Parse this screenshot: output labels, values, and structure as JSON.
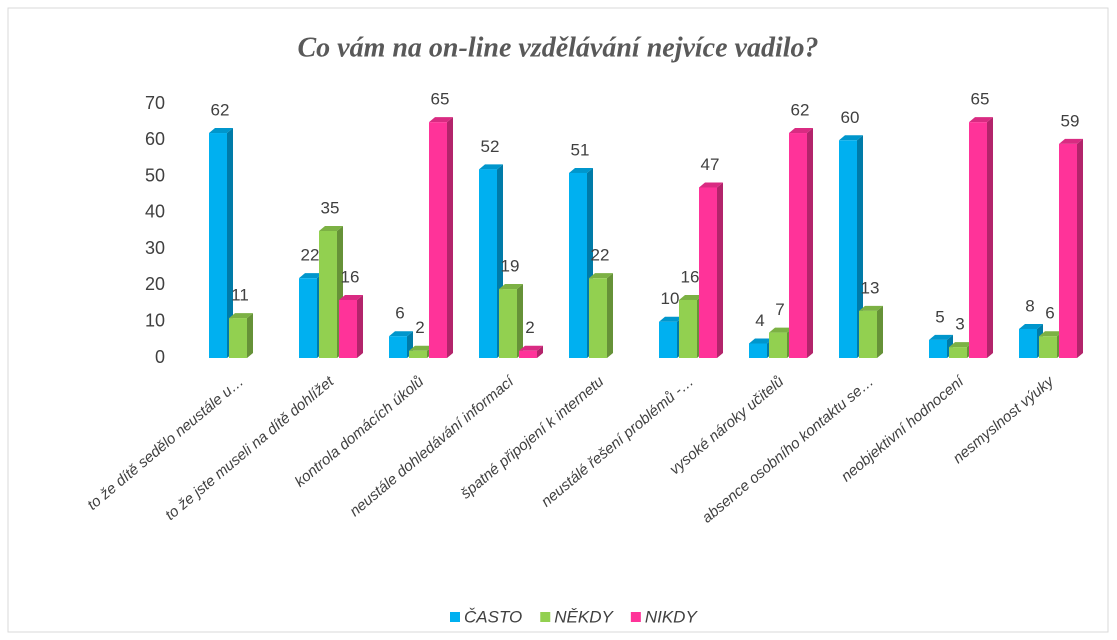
{
  "chart_data": {
    "type": "bar3d",
    "title": "Co vám na on-line vzdělávání nejvíce vadilo?",
    "categories": [
      "to že dítě sedělo neustále u…",
      "to že jste museli na dítě dohlížet",
      "kontrola domácích úkolů",
      "neustále dohledávání informací",
      "špatné připojení k internetu",
      "neustálé řešení problémů -…",
      "vysoké nároky učitelů",
      "absence osobního kontaktu se…",
      "neobjektivní hodnocení",
      "nesmyslnost výuky"
    ],
    "series": [
      {
        "name": "ČASTO",
        "color": "#00b0f0",
        "values": [
          62,
          22,
          6,
          52,
          51,
          10,
          4,
          60,
          5,
          8
        ]
      },
      {
        "name": "NĚKDY",
        "color": "#92d050",
        "values": [
          11,
          35,
          2,
          19,
          22,
          16,
          7,
          13,
          3,
          6
        ]
      },
      {
        "name": "NIKDY",
        "color": "#ff3399",
        "values": [
          null,
          16,
          65,
          2,
          null,
          47,
          62,
          null,
          65,
          59
        ]
      }
    ],
    "ylim": [
      0,
      70
    ],
    "yticks": [
      0,
      10,
      20,
      30,
      40,
      50,
      60,
      70
    ],
    "grid": false,
    "legend": "bottom"
  }
}
